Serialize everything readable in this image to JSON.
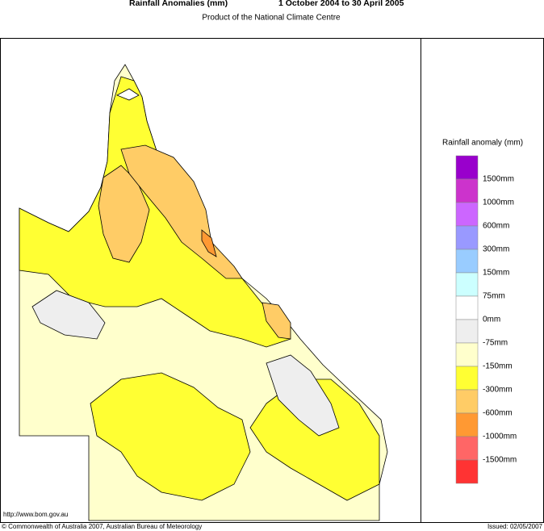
{
  "header": {
    "title": "Rainfall Anomalies (mm)",
    "period": "1 October 2004 to 30 April 2005",
    "subtitle": "Product of the National Climate Centre"
  },
  "legend": {
    "title": "Rainfall anomaly (mm)",
    "colors": [
      "#9900cc",
      "#cc33cc",
      "#cc66ff",
      "#9999ff",
      "#99ccff",
      "#ccffff",
      "#ffffff",
      "#eeeeee",
      "#ffffcc",
      "#ffff33",
      "#ffcc66",
      "#ff9933",
      "#ff6666",
      "#ff3333"
    ],
    "labels": [
      "1500mm",
      "1000mm",
      "600mm",
      "300mm",
      "150mm",
      "75mm",
      "0mm",
      "-75mm",
      "-150mm",
      "-300mm",
      "-600mm",
      "-1000mm",
      "-1500mm"
    ]
  },
  "footer": {
    "url": "http://www.bom.gov.au",
    "copyright": "© Commonwealth of Australia 2007, Australian Bureau of Meteorology",
    "issued": "Issued: 02/05/2007"
  }
}
